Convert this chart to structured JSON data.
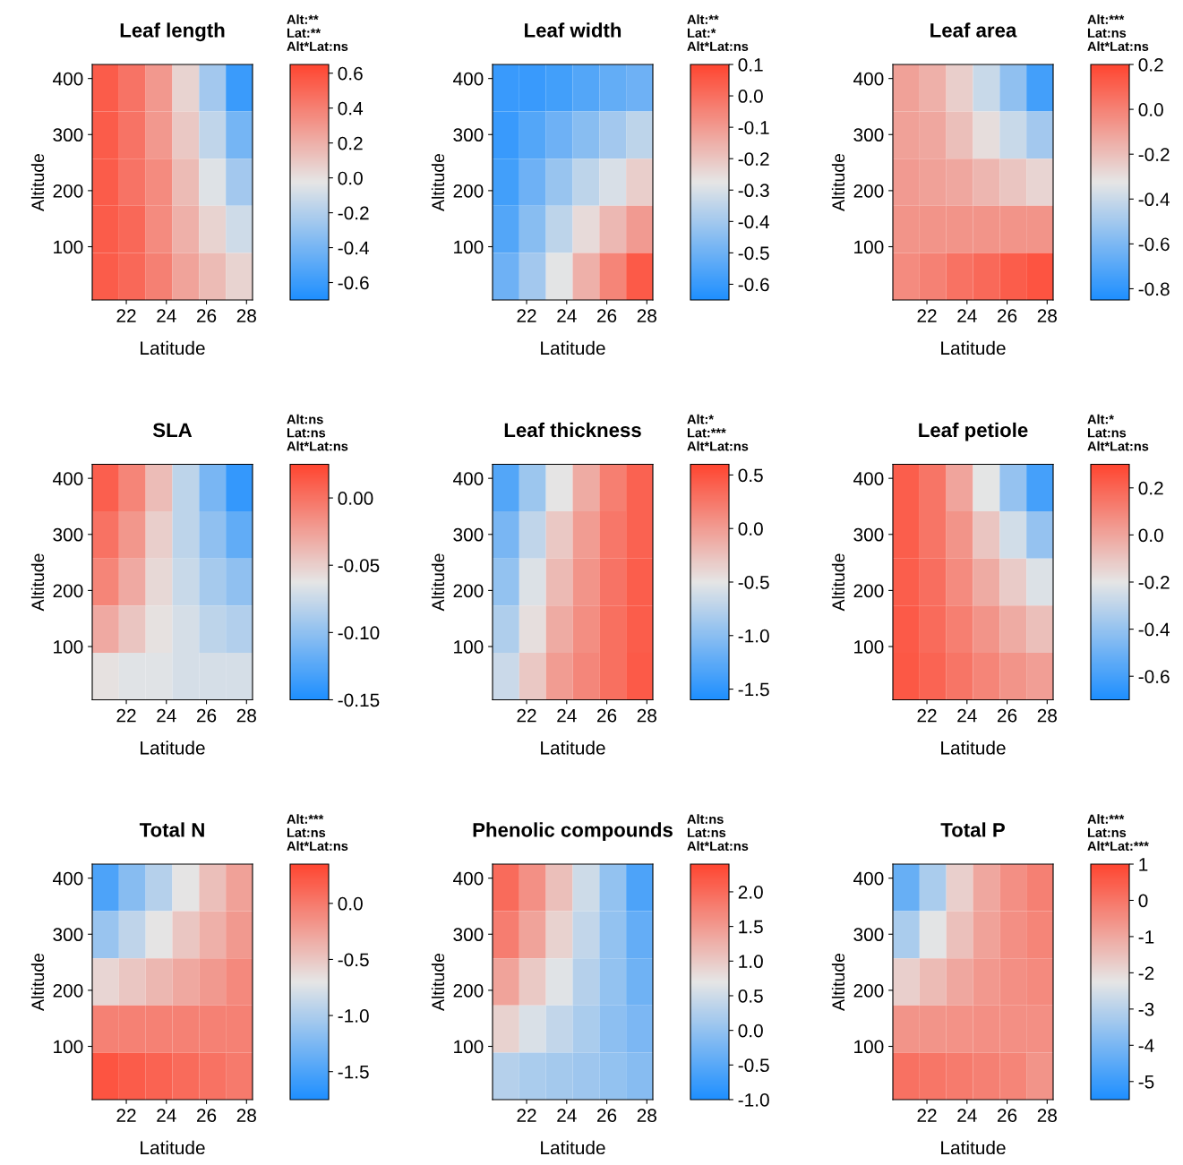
{
  "chart_data": [
    {
      "type": "heatmap",
      "title": "Leaf length",
      "xlabel": "Latitude",
      "ylabel": "Altitude",
      "annotations": [
        "Alt:**",
        "Lat:**",
        "Alt*Lat:ns"
      ],
      "xlim": [
        20.3,
        28.3
      ],
      "xticks": [
        22,
        24,
        26,
        28
      ],
      "ylim": [
        5,
        425
      ],
      "yticks": [
        100,
        200,
        300,
        400
      ],
      "clim": [
        -0.7,
        0.65
      ],
      "cticks": [
        -0.6,
        -0.4,
        -0.2,
        {
          "value": 0,
          "label": "0.0"
        },
        0.2,
        0.4,
        0.6
      ],
      "cells": [
        [
          0.55,
          0.45,
          0.3,
          0.05,
          -0.25,
          -0.6
        ],
        [
          0.55,
          0.45,
          0.3,
          0.1,
          -0.15,
          -0.4
        ],
        [
          0.55,
          0.45,
          0.35,
          0.15,
          -0.05,
          -0.25
        ],
        [
          0.55,
          0.5,
          0.35,
          0.2,
          0.05,
          -0.1
        ],
        [
          0.55,
          0.5,
          0.4,
          0.25,
          0.15,
          0.05
        ]
      ]
    },
    {
      "type": "heatmap",
      "title": "Leaf width",
      "xlabel": "Latitude",
      "ylabel": "Altitude",
      "annotations": [
        "Alt:**",
        "Lat:*",
        "Alt*Lat:ns"
      ],
      "xlim": [
        20.3,
        28.3
      ],
      "xticks": [
        22,
        24,
        26,
        28
      ],
      "ylim": [
        5,
        425
      ],
      "yticks": [
        100,
        200,
        300,
        400
      ],
      "clim": [
        -0.65,
        0.1
      ],
      "cticks": [
        -0.6,
        -0.5,
        -0.4,
        -0.3,
        -0.2,
        -0.1,
        {
          "value": 0,
          "label": "0.0"
        },
        0.1
      ],
      "cells": [
        [
          -0.6,
          -0.6,
          -0.58,
          -0.55,
          -0.52,
          -0.5
        ],
        [
          -0.6,
          -0.55,
          -0.5,
          -0.45,
          -0.4,
          -0.35
        ],
        [
          -0.58,
          -0.5,
          -0.42,
          -0.35,
          -0.3,
          -0.22
        ],
        [
          -0.55,
          -0.45,
          -0.35,
          -0.25,
          -0.17,
          -0.1
        ],
        [
          -0.5,
          -0.4,
          -0.28,
          -0.15,
          -0.05,
          0.05
        ]
      ]
    },
    {
      "type": "heatmap",
      "title": "Leaf area",
      "xlabel": "Latitude",
      "ylabel": "Altitude",
      "annotations": [
        "Alt:***",
        "Lat:ns",
        "Alt*Lat:ns"
      ],
      "xlim": [
        20.3,
        28.3
      ],
      "xticks": [
        22,
        24,
        26,
        28
      ],
      "ylim": [
        5,
        425
      ],
      "yticks": [
        100,
        200,
        300,
        400
      ],
      "clim": [
        -0.85,
        0.2
      ],
      "cticks": [
        -0.8,
        -0.6,
        -0.4,
        -0.2,
        {
          "value": 0,
          "label": "0.0"
        },
        0.2
      ],
      "cells": [
        [
          -0.1,
          -0.15,
          -0.25,
          -0.4,
          -0.55,
          -0.75
        ],
        [
          -0.1,
          -0.12,
          -0.2,
          -0.3,
          -0.4,
          -0.5
        ],
        [
          -0.08,
          -0.1,
          -0.12,
          -0.17,
          -0.22,
          -0.27
        ],
        [
          -0.06,
          -0.06,
          -0.06,
          -0.06,
          -0.06,
          -0.06
        ],
        [
          -0.03,
          0.0,
          0.05,
          0.08,
          0.12,
          0.15
        ]
      ]
    },
    {
      "type": "heatmap",
      "title": "SLA",
      "xlabel": "Latitude",
      "ylabel": "Altitude",
      "annotations": [
        "Alt:ns",
        "Lat:ns",
        "Alt*Lat:ns"
      ],
      "xlim": [
        20.3,
        28.3
      ],
      "xticks": [
        22,
        24,
        26,
        28
      ],
      "ylim": [
        5,
        425
      ],
      "yticks": [
        100,
        200,
        300,
        400
      ],
      "clim": [
        -0.15,
        0.025
      ],
      "cticks": [
        {
          "value": -0.15,
          "label": "-0.15"
        },
        {
          "value": -0.1,
          "label": "-0.10"
        },
        {
          "value": -0.05,
          "label": "-0.05"
        },
        {
          "value": 0.0,
          "label": "0.00"
        }
      ],
      "cells": [
        [
          0.01,
          -0.01,
          -0.04,
          -0.08,
          -0.11,
          -0.14
        ],
        [
          0.0,
          -0.02,
          -0.05,
          -0.08,
          -0.1,
          -0.12
        ],
        [
          -0.01,
          -0.03,
          -0.055,
          -0.075,
          -0.09,
          -0.1
        ],
        [
          -0.03,
          -0.045,
          -0.06,
          -0.07,
          -0.08,
          -0.085
        ],
        [
          -0.06,
          -0.065,
          -0.065,
          -0.07,
          -0.07,
          -0.07
        ]
      ]
    },
    {
      "type": "heatmap",
      "title": "Leaf thickness",
      "xlabel": "Latitude",
      "ylabel": "Altitude",
      "annotations": [
        "Alt:*",
        "Lat:***",
        "Alt*Lat:ns"
      ],
      "xlim": [
        20.3,
        28.3
      ],
      "xticks": [
        22,
        24,
        26,
        28
      ],
      "ylim": [
        5,
        425
      ],
      "yticks": [
        100,
        200,
        300,
        400
      ],
      "clim": [
        -1.6,
        0.6
      ],
      "cticks": [
        -1.5,
        {
          "value": -1,
          "label": "-1.0"
        },
        -0.5,
        {
          "value": 0,
          "label": "0.0"
        },
        0.5
      ],
      "cells": [
        [
          -1.3,
          -0.9,
          -0.5,
          -0.1,
          0.2,
          0.4
        ],
        [
          -1.1,
          -0.7,
          -0.3,
          0.0,
          0.25,
          0.4
        ],
        [
          -0.95,
          -0.55,
          -0.2,
          0.05,
          0.28,
          0.42
        ],
        [
          -0.8,
          -0.45,
          -0.1,
          0.1,
          0.3,
          0.43
        ],
        [
          -0.65,
          -0.3,
          0.0,
          0.15,
          0.3,
          0.45
        ]
      ]
    },
    {
      "type": "heatmap",
      "title": "Leaf petiole",
      "xlabel": "Latitude",
      "ylabel": "Altitude",
      "annotations": [
        "Alt:*",
        "Lat:ns",
        "Alt*Lat:ns"
      ],
      "xlim": [
        20.3,
        28.3
      ],
      "xticks": [
        22,
        24,
        26,
        28
      ],
      "ylim": [
        5,
        425
      ],
      "yticks": [
        100,
        200,
        300,
        400
      ],
      "clim": [
        -0.7,
        0.3
      ],
      "cticks": [
        -0.6,
        -0.4,
        -0.2,
        {
          "value": 0,
          "label": "0.0"
        },
        0.2
      ],
      "cells": [
        [
          0.22,
          0.15,
          0.0,
          -0.2,
          -0.4,
          -0.6
        ],
        [
          0.22,
          0.15,
          0.05,
          -0.1,
          -0.25,
          -0.4
        ],
        [
          0.22,
          0.17,
          0.08,
          -0.02,
          -0.12,
          -0.22
        ],
        [
          0.23,
          0.18,
          0.12,
          0.05,
          -0.02,
          -0.08
        ],
        [
          0.24,
          0.2,
          0.15,
          0.1,
          0.05,
          0.02
        ]
      ]
    },
    {
      "type": "heatmap",
      "title": "Total N",
      "xlabel": "Latitude",
      "ylabel": "Altitude",
      "annotations": [
        "Alt:***",
        "Lat:ns",
        "Alt*Lat:ns"
      ],
      "xlim": [
        20.3,
        28.3
      ],
      "xticks": [
        22,
        24,
        26,
        28
      ],
      "ylim": [
        5,
        425
      ],
      "yticks": [
        100,
        200,
        300,
        400
      ],
      "clim": [
        -1.75,
        0.35
      ],
      "cticks": [
        -1.5,
        {
          "value": -1,
          "label": "-1.0"
        },
        -0.5,
        {
          "value": 0,
          "label": "0.0"
        }
      ],
      "cells": [
        [
          -1.5,
          -1.2,
          -0.95,
          -0.7,
          -0.45,
          -0.25
        ],
        [
          -1.1,
          -0.9,
          -0.7,
          -0.5,
          -0.35,
          -0.2
        ],
        [
          -0.6,
          -0.5,
          -0.4,
          -0.3,
          -0.2,
          -0.1
        ],
        [
          -0.05,
          -0.05,
          -0.05,
          -0.05,
          -0.05,
          -0.05
        ],
        [
          0.25,
          0.2,
          0.15,
          0.1,
          0.05,
          0.0
        ]
      ]
    },
    {
      "type": "heatmap",
      "title": "Phenolic compounds",
      "xlabel": "Latitude",
      "ylabel": "Altitude",
      "annotations": [
        "Alt:ns",
        "Lat:ns",
        "Alt*Lat:ns"
      ],
      "xlim": [
        20.3,
        28.3
      ],
      "xticks": [
        22,
        24,
        26,
        28
      ],
      "ylim": [
        5,
        425
      ],
      "yticks": [
        100,
        200,
        300,
        400
      ],
      "clim": [
        -1.0,
        2.4
      ],
      "cticks": [
        {
          "value": -1,
          "label": "-1.0"
        },
        -0.5,
        {
          "value": 0,
          "label": "0.0"
        },
        0.5,
        {
          "value": 1,
          "label": "1.0"
        },
        1.5,
        {
          "value": 2,
          "label": "2.0"
        }
      ],
      "cells": [
        [
          2.0,
          1.6,
          1.1,
          0.5,
          0.0,
          -0.6
        ],
        [
          1.8,
          1.4,
          0.9,
          0.4,
          0.0,
          -0.4
        ],
        [
          1.4,
          1.0,
          0.65,
          0.3,
          0.0,
          -0.3
        ],
        [
          0.9,
          0.6,
          0.4,
          0.2,
          -0.05,
          -0.2
        ],
        [
          0.3,
          0.2,
          0.15,
          0.1,
          0.0,
          -0.1
        ]
      ]
    },
    {
      "type": "heatmap",
      "title": "Total P",
      "xlabel": "Latitude",
      "ylabel": "Altitude",
      "annotations": [
        "Alt:***",
        "Lat:ns",
        "Alt*Lat:***"
      ],
      "xlim": [
        20.3,
        28.3
      ],
      "xticks": [
        22,
        24,
        26,
        28
      ],
      "ylim": [
        5,
        425
      ],
      "yticks": [
        100,
        200,
        300,
        400
      ],
      "clim": [
        -5.5,
        1
      ],
      "cticks": [
        -5,
        -4,
        -3,
        -2,
        -1,
        0,
        1
      ],
      "cells": [
        [
          -4.3,
          -3.2,
          -1.8,
          -1.0,
          -0.5,
          -0.2
        ],
        [
          -3.2,
          -2.3,
          -1.5,
          -0.9,
          -0.5,
          -0.3
        ],
        [
          -1.8,
          -1.4,
          -1.0,
          -0.7,
          -0.5,
          -0.4
        ],
        [
          -0.6,
          -0.6,
          -0.55,
          -0.5,
          -0.5,
          -0.5
        ],
        [
          0.1,
          0.0,
          -0.1,
          -0.2,
          -0.3,
          -0.6
        ]
      ]
    }
  ]
}
